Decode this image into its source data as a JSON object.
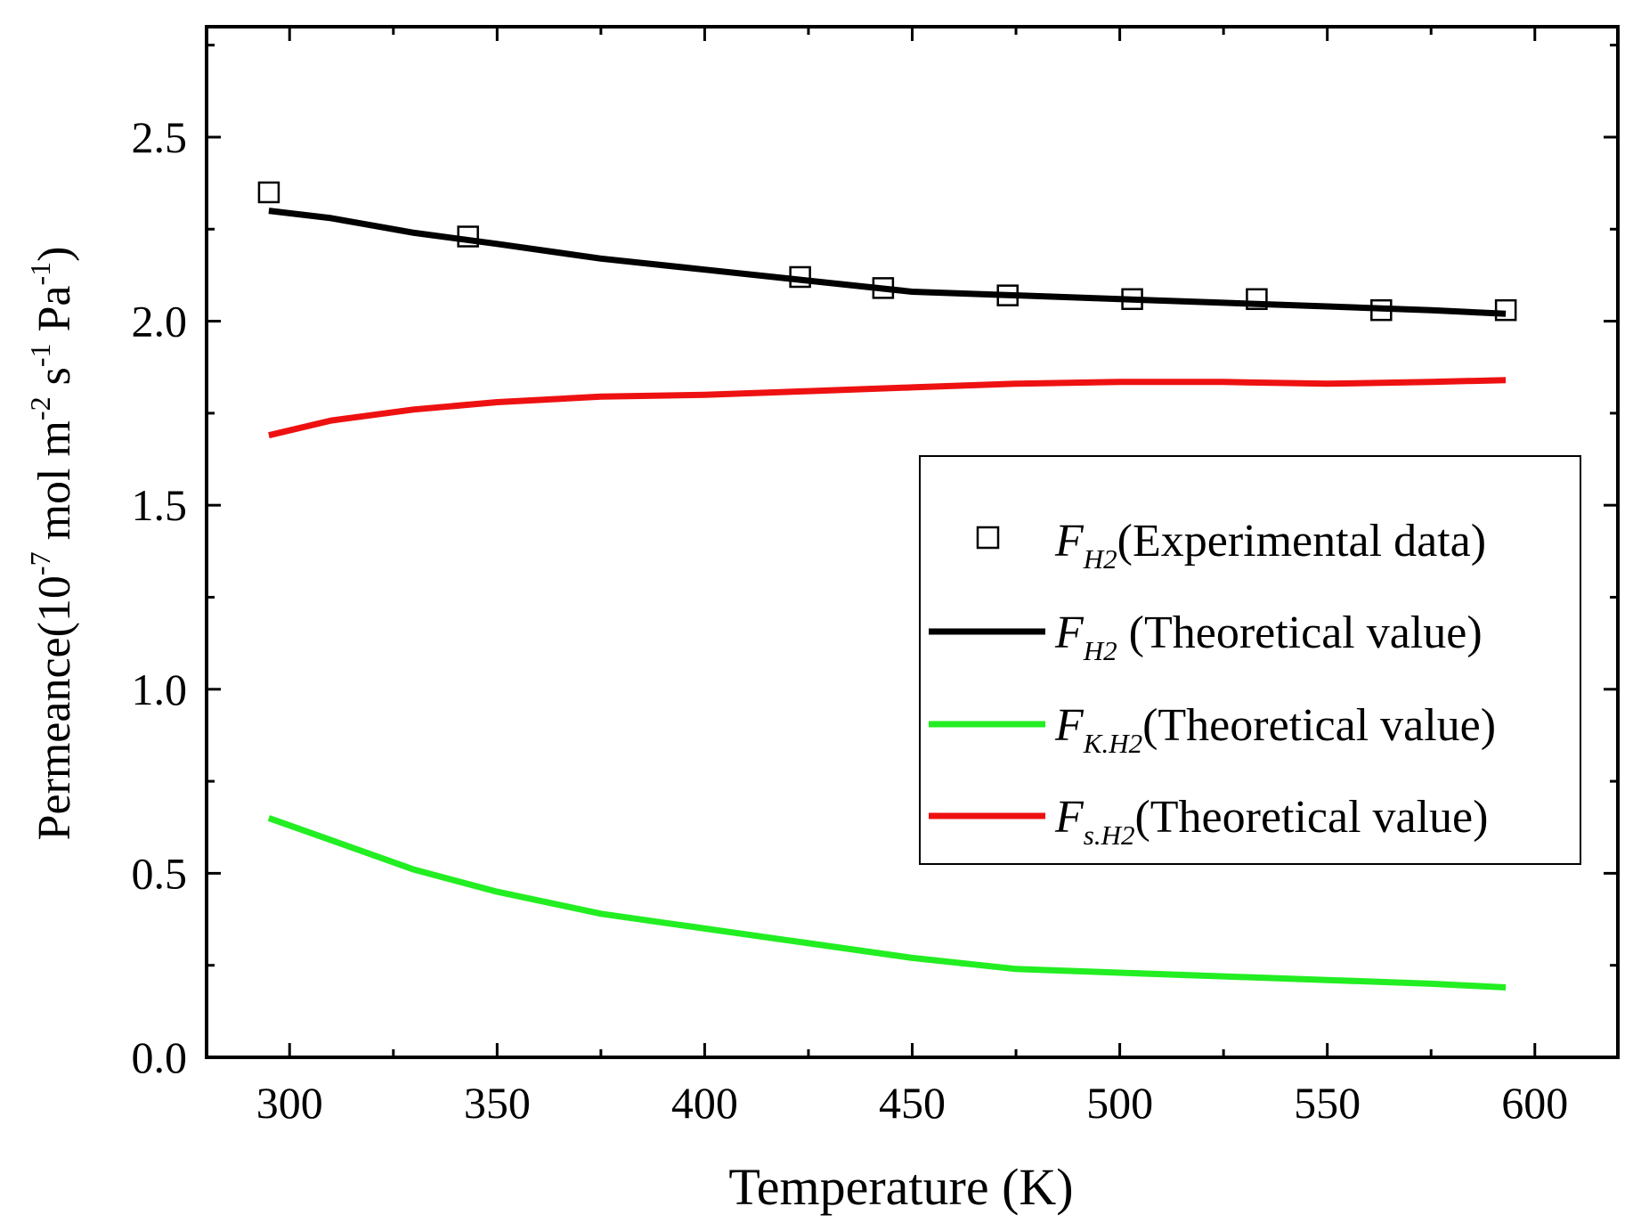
{
  "chart_data": {
    "type": "line",
    "title": "",
    "xlabel": "Temperature (K)",
    "ylabel": {
      "prefix": "Permeance(10",
      "exp1": "-7",
      "mid1": " mol m",
      "exp2": "-2",
      "mid2": " s",
      "exp3": "-1",
      "mid3": " Pa",
      "exp4": "-1",
      "suffix": ")"
    },
    "xlim": [
      280,
      620
    ],
    "ylim": [
      0.0,
      2.8
    ],
    "xticks": [
      300,
      350,
      400,
      450,
      500,
      550,
      600
    ],
    "xtick_labels": [
      "300",
      "350",
      "400",
      "450",
      "500",
      "550",
      "600"
    ],
    "yticks": [
      0.0,
      0.5,
      1.0,
      1.5,
      2.0,
      2.5
    ],
    "ytick_labels": [
      "0.0",
      "0.5",
      "1.0",
      "1.5",
      "2.0",
      "2.5"
    ],
    "legend_position": "center-right",
    "series": [
      {
        "name": "F_H2 (Experimental data)",
        "kind": "scatter",
        "marker": "open-square",
        "color": "#000000",
        "legend": {
          "main": "F",
          "sub": "H2",
          "text": "(Experimental data)"
        },
        "x": [
          295,
          343,
          423,
          443,
          473,
          503,
          533,
          563,
          593
        ],
        "y": [
          2.35,
          2.23,
          2.12,
          2.09,
          2.07,
          2.06,
          2.06,
          2.03,
          2.03
        ]
      },
      {
        "name": "F_H2 (Theoretical value)",
        "kind": "line",
        "color": "#000000",
        "legend": {
          "main": "F",
          "sub": "H2",
          "text": " (Theoretical value)"
        },
        "x": [
          295,
          310,
          330,
          350,
          375,
          400,
          425,
          450,
          475,
          500,
          525,
          550,
          575,
          593
        ],
        "y": [
          2.3,
          2.28,
          2.24,
          2.21,
          2.17,
          2.14,
          2.11,
          2.08,
          2.07,
          2.06,
          2.05,
          2.04,
          2.03,
          2.02
        ]
      },
      {
        "name": "F_K.H2 (Theoretical value)",
        "kind": "line",
        "color": "#22ee22",
        "legend": {
          "main": "F",
          "sub": "K.H2",
          "text": "(Theoretical value)"
        },
        "x": [
          295,
          310,
          330,
          350,
          375,
          400,
          425,
          450,
          475,
          500,
          525,
          550,
          575,
          593
        ],
        "y": [
          0.65,
          0.59,
          0.51,
          0.45,
          0.39,
          0.35,
          0.31,
          0.27,
          0.24,
          0.23,
          0.22,
          0.21,
          0.2,
          0.19
        ]
      },
      {
        "name": "F_s.H2 (Theoretical value)",
        "kind": "line",
        "color": "#ee1111",
        "legend": {
          "main": "F",
          "sub": "s.H2",
          "text": "(Theoretical value)"
        },
        "x": [
          295,
          310,
          330,
          350,
          375,
          400,
          425,
          450,
          475,
          500,
          525,
          550,
          575,
          593
        ],
        "y": [
          1.69,
          1.73,
          1.76,
          1.78,
          1.795,
          1.8,
          1.81,
          1.82,
          1.83,
          1.835,
          1.835,
          1.83,
          1.835,
          1.84
        ]
      }
    ]
  }
}
